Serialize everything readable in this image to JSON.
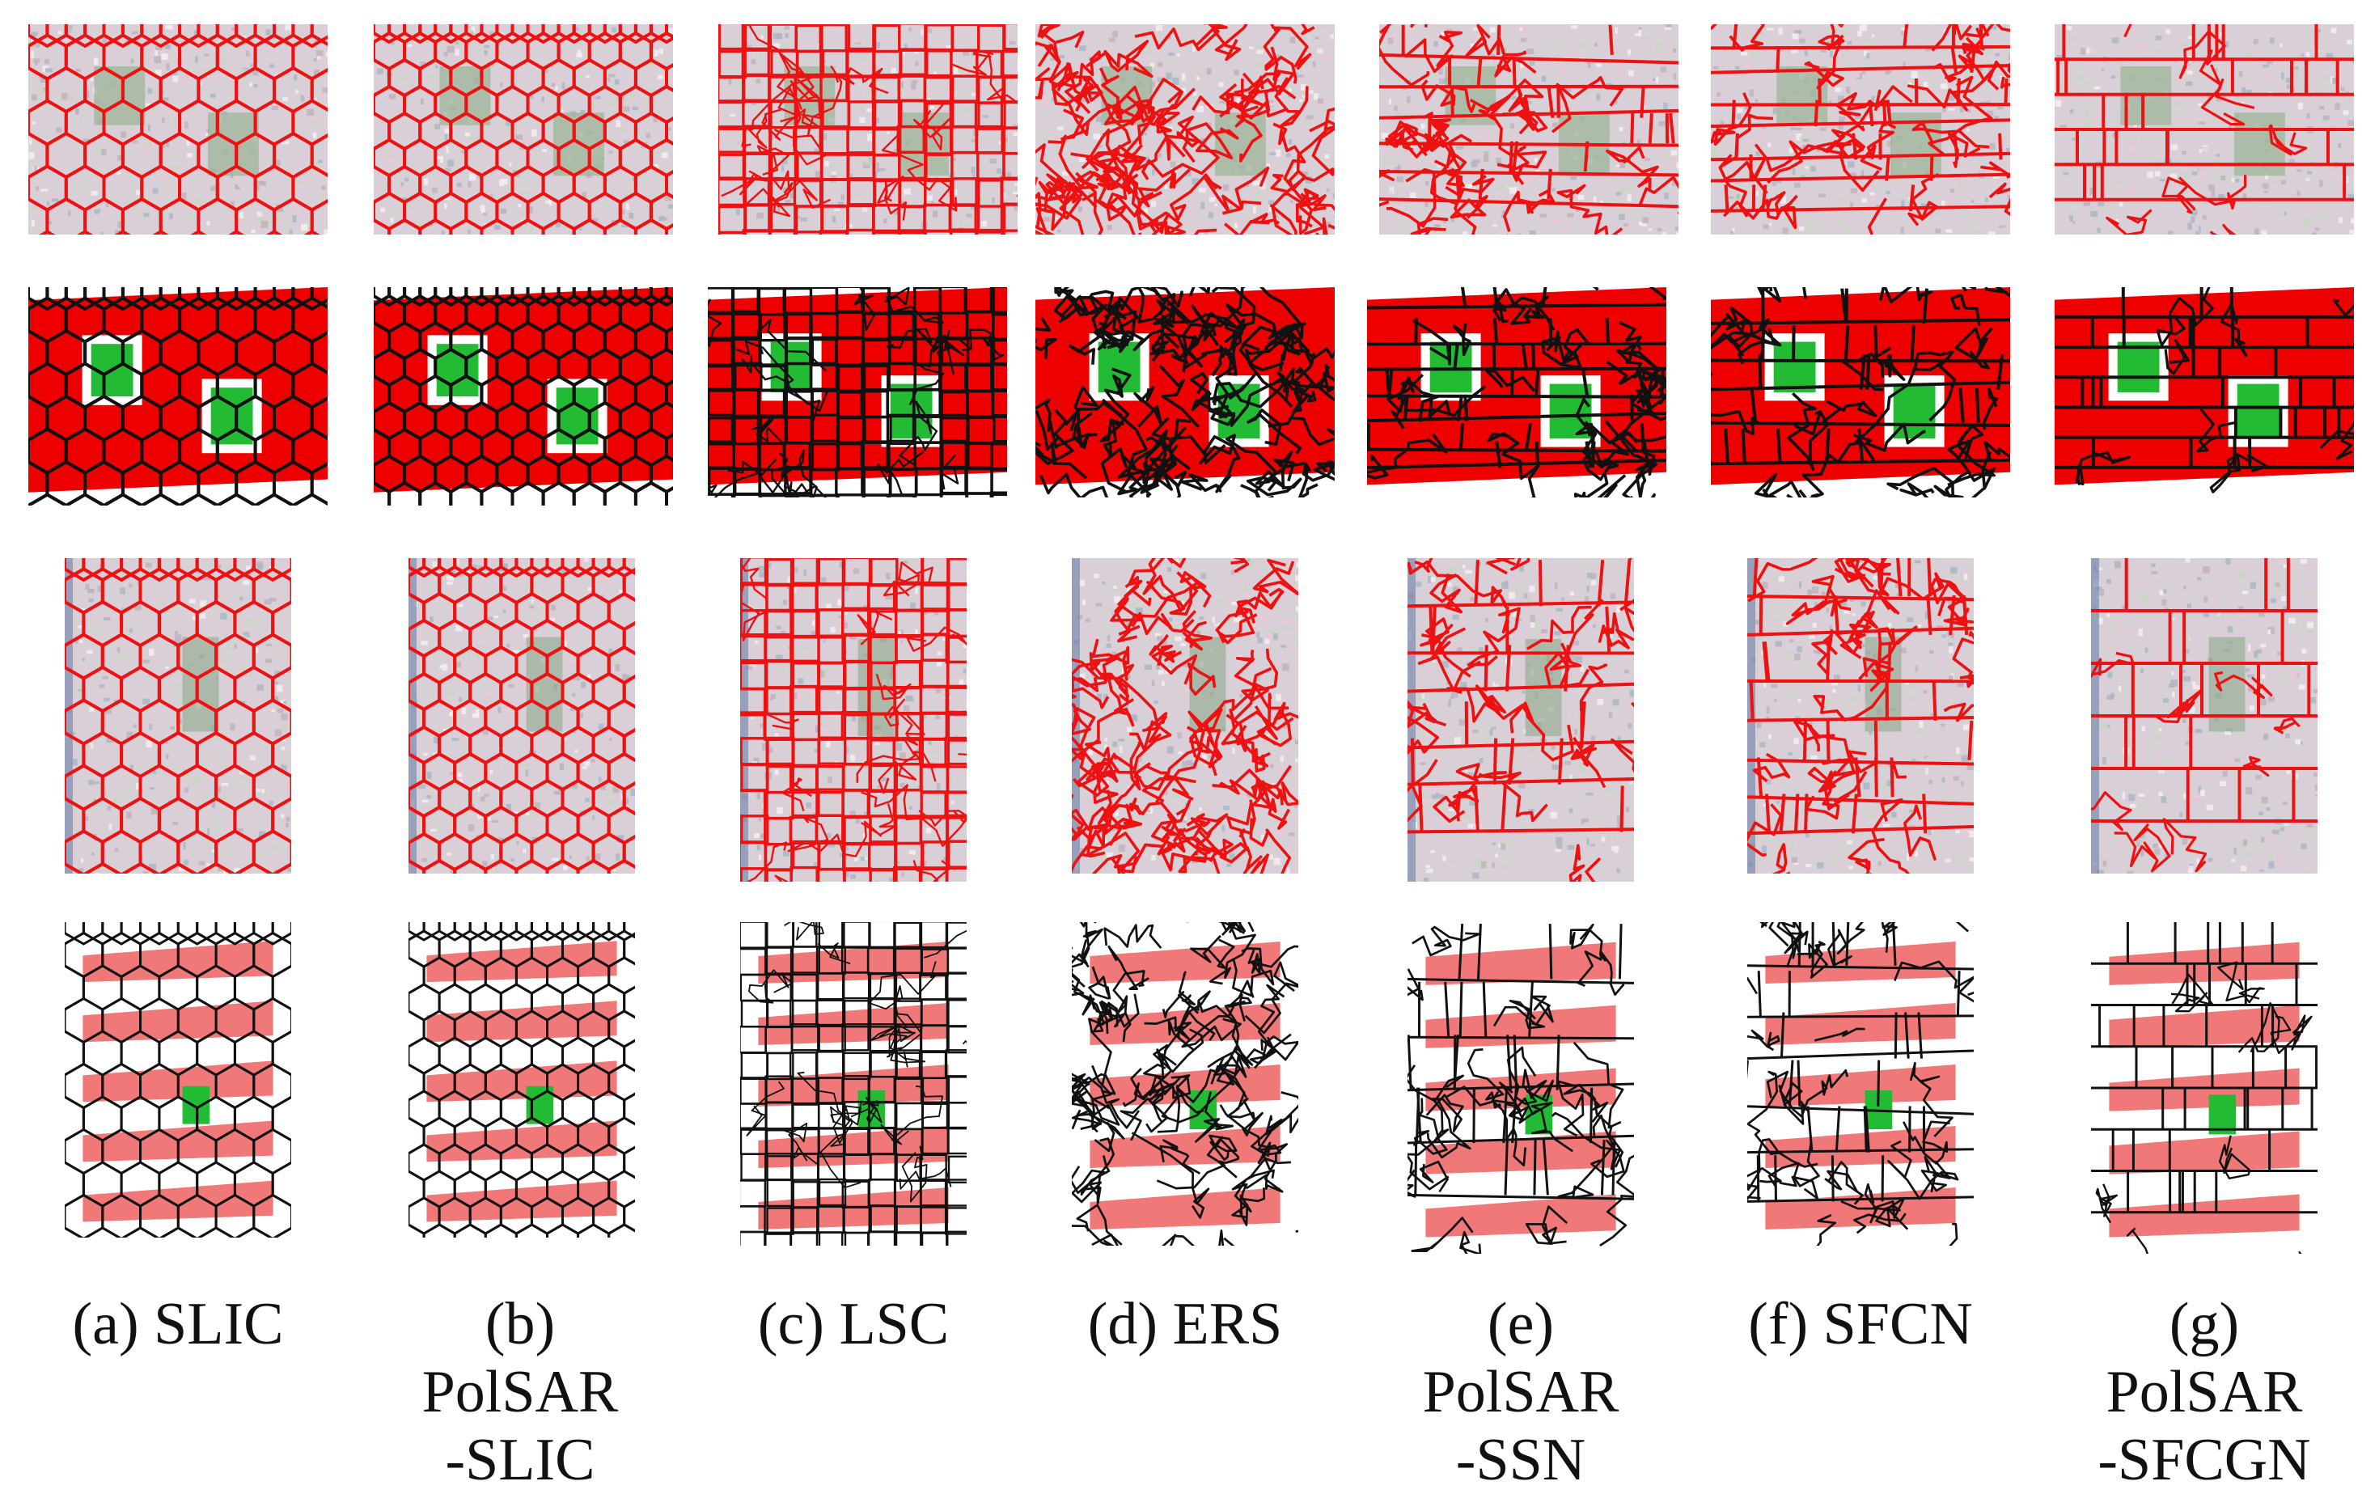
{
  "captions": [
    {
      "line1": "(a) SLIC",
      "line2": ""
    },
    {
      "line1": "(b) PolSAR",
      "line2": "-SLIC"
    },
    {
      "line1": "(c) LSC",
      "line2": ""
    },
    {
      "line1": "(d) ERS",
      "line2": ""
    },
    {
      "line1": "(e) PolSAR",
      "line2": "-SSN"
    },
    {
      "line1": "(f) SFCN",
      "line2": ""
    },
    {
      "line1": "(g) PolSAR",
      "line2": "-SFCGN"
    }
  ],
  "colors": {
    "boundary_red": "#ee1111",
    "boundary_black": "#111111",
    "class_red": "#ee0000",
    "class_salmon": "#f07878",
    "class_green": "#22bb33",
    "sar_speckle": "#d9cfd6"
  }
}
